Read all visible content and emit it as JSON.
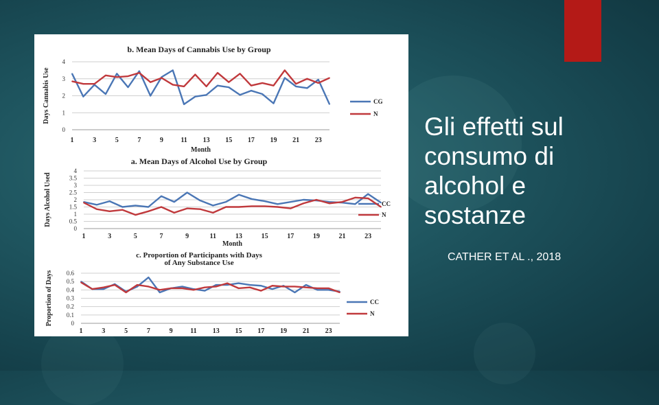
{
  "slide": {
    "title_lines": [
      "Gli effetti sul",
      "consumo di",
      "alcohol e",
      "sostanze"
    ],
    "credit": "CATHER ET AL ., 2018",
    "accent_color": "#b41a17",
    "text_color": "#ffffff"
  },
  "chart_data": [
    {
      "type": "line",
      "title": "b. Mean Days of Cannabis Use by Group",
      "xlabel": "Month",
      "ylabel": "Days Cannabis Use",
      "x": [
        1,
        2,
        3,
        4,
        5,
        6,
        7,
        8,
        9,
        10,
        11,
        12,
        13,
        14,
        15,
        16,
        17,
        18,
        19,
        20,
        21,
        22,
        23,
        24
      ],
      "xticks": [
        "1",
        "3",
        "5",
        "7",
        "9",
        "11",
        "13",
        "15",
        "17",
        "19",
        "21",
        "23"
      ],
      "yticks": [
        "0",
        "1",
        "2",
        "3",
        "4"
      ],
      "ylim": [
        0,
        4
      ],
      "grid": true,
      "legend": "right",
      "series": [
        {
          "name": "CG",
          "color": "#4a76b5",
          "values": [
            3.3,
            1.95,
            2.65,
            2.1,
            3.3,
            2.5,
            3.45,
            2.0,
            3.1,
            3.5,
            1.5,
            1.95,
            2.05,
            2.6,
            2.5,
            2.05,
            2.3,
            2.1,
            1.55,
            3.05,
            2.55,
            2.45,
            2.95,
            1.5
          ]
        },
        {
          "name": "N",
          "color": "#c0393c",
          "values": [
            2.85,
            2.7,
            2.7,
            3.2,
            3.1,
            3.15,
            3.35,
            2.8,
            3.05,
            2.65,
            2.55,
            3.25,
            2.55,
            3.35,
            2.8,
            3.3,
            2.6,
            2.75,
            2.6,
            3.5,
            2.7,
            3.0,
            2.75,
            3.05
          ]
        }
      ]
    },
    {
      "type": "line",
      "title": "a. Mean Days of Alcohol Use by Group",
      "xlabel": "Month",
      "ylabel": "Days Alcohol Used",
      "x": [
        1,
        2,
        3,
        4,
        5,
        6,
        7,
        8,
        9,
        10,
        11,
        12,
        13,
        14,
        15,
        16,
        17,
        18,
        19,
        20,
        21,
        22,
        23,
        24
      ],
      "xticks": [
        "1",
        "3",
        "5",
        "7",
        "9",
        "11",
        "13",
        "15",
        "17",
        "19",
        "21",
        "23"
      ],
      "yticks": [
        "0",
        "0.5",
        "1",
        "1.5",
        "2",
        "2.5",
        "3",
        "3.5",
        "4"
      ],
      "ylim": [
        0,
        4
      ],
      "grid": true,
      "legend": "right",
      "series": [
        {
          "name": "CC",
          "color": "#4a76b5",
          "values": [
            1.85,
            1.65,
            1.9,
            1.5,
            1.6,
            1.5,
            2.25,
            1.85,
            2.5,
            1.95,
            1.6,
            1.85,
            2.35,
            2.05,
            1.9,
            1.7,
            1.85,
            2.0,
            1.95,
            1.85,
            1.8,
            1.7,
            2.4,
            1.8
          ]
        },
        {
          "name": "N",
          "color": "#c0393c",
          "values": [
            1.8,
            1.35,
            1.2,
            1.3,
            0.95,
            1.2,
            1.5,
            1.1,
            1.4,
            1.35,
            1.1,
            1.5,
            1.5,
            1.55,
            1.55,
            1.5,
            1.4,
            1.75,
            2.0,
            1.75,
            1.85,
            2.15,
            2.1,
            1.5
          ]
        }
      ]
    },
    {
      "type": "line",
      "title": "c. Proportion of Participants with Days of Any Substance Use",
      "title_lines": [
        "c. Proportion of Participants with Days",
        "of Any Substance Use"
      ],
      "xlabel": "",
      "ylabel": "Proportion of Days",
      "x": [
        1,
        2,
        3,
        4,
        5,
        6,
        7,
        8,
        9,
        10,
        11,
        12,
        13,
        14,
        15,
        16,
        17,
        18,
        19,
        20,
        21,
        22,
        23,
        24
      ],
      "xticks": [
        "1",
        "3",
        "5",
        "7",
        "9",
        "11",
        "13",
        "15",
        "17",
        "19",
        "21",
        "23"
      ],
      "yticks": [
        "0",
        "0.1",
        "0.2",
        "0.3",
        "0.4",
        "0.5",
        "0.6"
      ],
      "ylim": [
        0,
        0.6
      ],
      "grid": true,
      "legend": "right",
      "series": [
        {
          "name": "CC",
          "color": "#4a76b5",
          "values": [
            0.5,
            0.41,
            0.41,
            0.47,
            0.38,
            0.44,
            0.55,
            0.37,
            0.42,
            0.44,
            0.41,
            0.39,
            0.46,
            0.46,
            0.48,
            0.46,
            0.45,
            0.41,
            0.45,
            0.37,
            0.46,
            0.4,
            0.4,
            0.38
          ]
        },
        {
          "name": "N",
          "color": "#c0393c",
          "values": [
            0.49,
            0.41,
            0.43,
            0.46,
            0.37,
            0.46,
            0.44,
            0.4,
            0.42,
            0.42,
            0.4,
            0.43,
            0.44,
            0.48,
            0.42,
            0.43,
            0.39,
            0.45,
            0.44,
            0.44,
            0.43,
            0.42,
            0.42,
            0.37
          ]
        }
      ]
    }
  ]
}
